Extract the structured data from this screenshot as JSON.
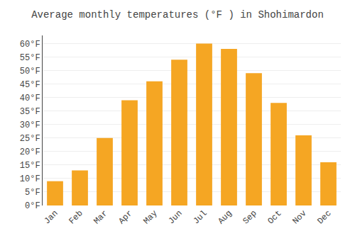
{
  "chart_data": {
    "type": "bar",
    "title": "Average monthly temperatures (°F ) in Shohimardon",
    "categories": [
      "Jan",
      "Feb",
      "Mar",
      "Apr",
      "May",
      "Jun",
      "Jul",
      "Aug",
      "Sep",
      "Oct",
      "Nov",
      "Dec"
    ],
    "values": [
      9,
      13,
      25,
      39,
      46,
      54,
      60,
      58,
      49,
      38,
      26,
      16
    ],
    "color": "#F5A623",
    "ylim": [
      0,
      63
    ],
    "yticks": [
      {
        "value": 0,
        "label": "0°F"
      },
      {
        "value": 5,
        "label": "5°F"
      },
      {
        "value": 10,
        "label": "10°F"
      },
      {
        "value": 15,
        "label": "15°F"
      },
      {
        "value": 20,
        "label": "20°F"
      },
      {
        "value": 25,
        "label": "25°F"
      },
      {
        "value": 30,
        "label": "30°F"
      },
      {
        "value": 35,
        "label": "35°F"
      },
      {
        "value": 40,
        "label": "40°F"
      },
      {
        "value": 45,
        "label": "45°F"
      },
      {
        "value": 50,
        "label": "50°F"
      },
      {
        "value": 55,
        "label": "55°F"
      },
      {
        "value": 60,
        "label": "60°F"
      }
    ],
    "grid": true
  }
}
